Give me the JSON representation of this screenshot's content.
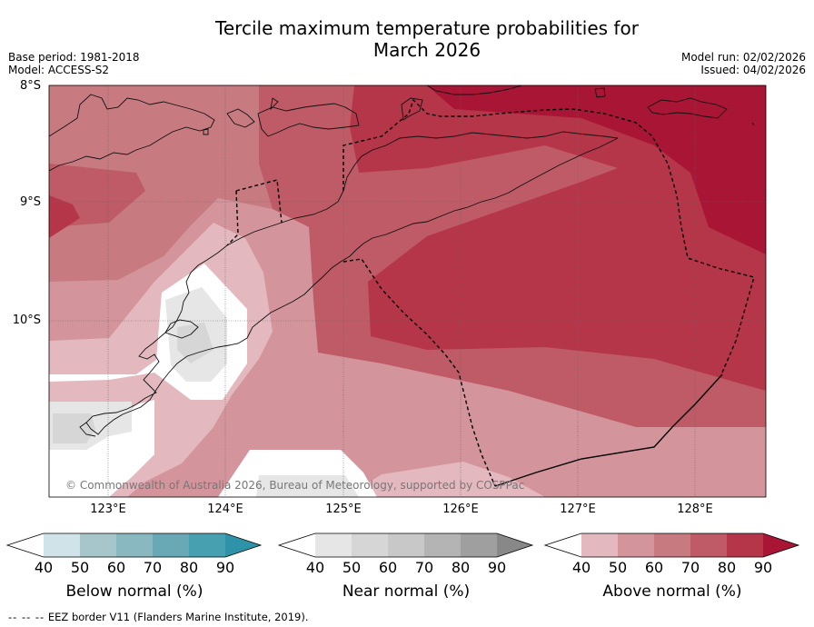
{
  "title": {
    "line1": "Tercile maximum temperature probabilities for",
    "line2": "March 2026"
  },
  "meta": {
    "base_period": "Base period: 1981-2018",
    "model": "Model: ACCESS-S2",
    "model_run": "Model run: 02/02/2026",
    "issued": "Issued: 04/02/2026"
  },
  "map": {
    "lat_labels": [
      "8°S",
      "9°S",
      "10°S"
    ],
    "lon_labels": [
      "123°E",
      "124°E",
      "125°E",
      "126°E",
      "127°E",
      "128°E"
    ],
    "credit": "© Commonwealth of Australia 2026, Bureau of Meteorology, supported by COSPPac"
  },
  "legend": {
    "ticks": [
      "40",
      "50",
      "60",
      "70",
      "80",
      "90"
    ],
    "below": {
      "title": "Below normal (%)",
      "colors": [
        "#cfe3e8",
        "#a6c6cb",
        "#89b8c1",
        "#68a9b5",
        "#46a0b0",
        "#2e93a8"
      ]
    },
    "near": {
      "title": "Near normal (%)",
      "colors": [
        "#e6e6e6",
        "#d6d6d6",
        "#c8c8c8",
        "#b4b4b4",
        "#9f9f9f",
        "#888888"
      ]
    },
    "above": {
      "title": "Above normal (%)",
      "colors": [
        "#e3b8bf",
        "#d3949c",
        "#c87a81",
        "#be5b66",
        "#b53649",
        "#a81535"
      ]
    }
  },
  "footer": {
    "dashes": "-- -- --",
    "text": "EEZ border V11 (Flanders Marine Institute, 2019)."
  }
}
